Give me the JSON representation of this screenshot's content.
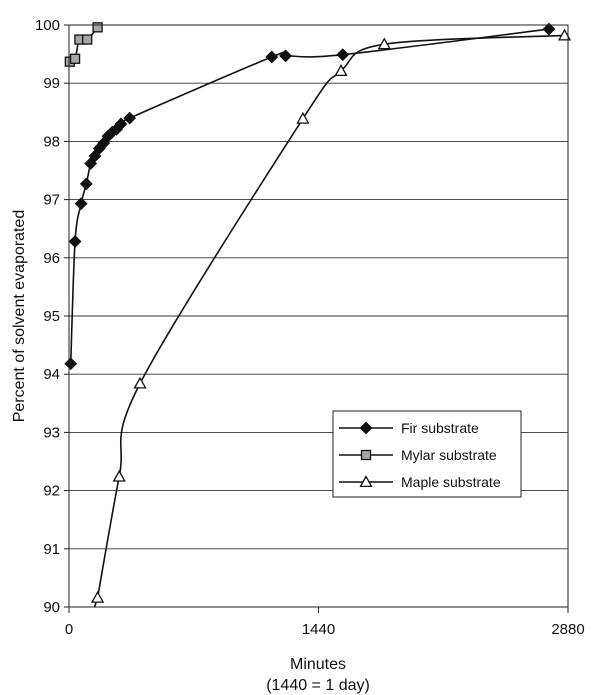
{
  "chart_data": {
    "type": "line",
    "xlabel": "Minutes",
    "xlabel_note": "(1440 = 1 day)",
    "ylabel": "Percent of solvent evaporated",
    "xlim": [
      0,
      2880
    ],
    "ylim": [
      90,
      100
    ],
    "x_ticks": [
      0,
      1440,
      2880
    ],
    "y_ticks": [
      90,
      91,
      92,
      93,
      94,
      95,
      96,
      97,
      98,
      99,
      100
    ],
    "grid": "horizontal",
    "legend_position": "lower-right",
    "series": [
      {
        "name": "Fir substrate",
        "marker": "diamond",
        "color": "#111111",
        "x": [
          10,
          35,
          70,
          100,
          125,
          150,
          175,
          200,
          225,
          250,
          275,
          300,
          350,
          1170,
          1250,
          1580,
          2770
        ],
        "y": [
          94.18,
          96.28,
          96.93,
          97.27,
          97.62,
          97.75,
          97.88,
          97.97,
          98.09,
          98.16,
          98.21,
          98.3,
          98.4,
          99.45,
          99.47,
          99.49,
          99.93
        ]
      },
      {
        "name": "Mylar substrate",
        "marker": "square",
        "color": "#a6a6a6",
        "x": [
          5,
          35,
          60,
          105,
          165
        ],
        "y": [
          99.37,
          99.42,
          99.75,
          99.75,
          99.96
        ]
      },
      {
        "name": "Maple substrate",
        "marker": "triangle",
        "color": "#ffffff",
        "x": [
          165,
          290,
          410,
          1350,
          1570,
          1820,
          2860
        ],
        "y": [
          90.16,
          92.24,
          93.84,
          98.39,
          99.21,
          99.67,
          99.82
        ]
      }
    ]
  }
}
